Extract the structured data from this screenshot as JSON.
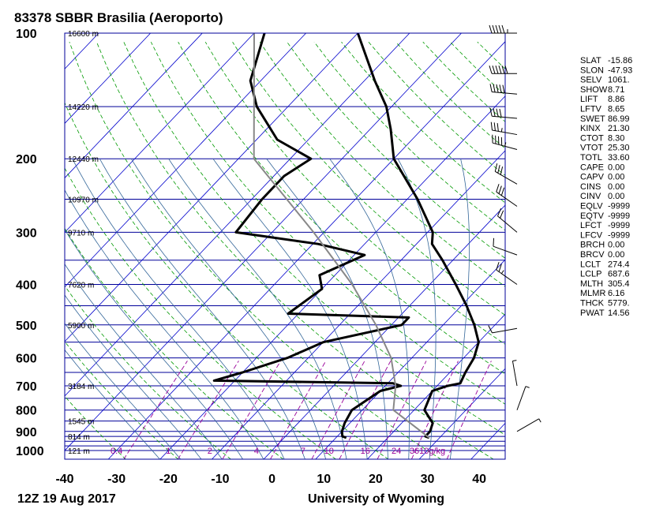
{
  "chart_data": {
    "type": "line",
    "title": "83378 SBBR Brasilia (Aeroporto)",
    "footer_left": "12Z 19 Aug 2017",
    "footer_right": "University of Wyoming",
    "x_ticks": [
      -40,
      -30,
      -20,
      -10,
      0,
      10,
      20,
      30,
      40
    ],
    "xlim": [
      -40,
      45
    ],
    "p_ticks": [
      100,
      200,
      300,
      400,
      500,
      600,
      700,
      800,
      900,
      1000
    ],
    "ylim": [
      1000,
      100
    ],
    "heights": [
      {
        "p": 100,
        "label": "16600 m"
      },
      {
        "p": 150,
        "label": "14220 m"
      },
      {
        "p": 200,
        "label": "12440 m"
      },
      {
        "p": 250,
        "label": "10970 m"
      },
      {
        "p": 300,
        "label": "9710 m"
      },
      {
        "p": 400,
        "label": "7620 m"
      },
      {
        "p": 500,
        "label": "5900 m"
      },
      {
        "p": 700,
        "label": "3184 m"
      },
      {
        "p": 850,
        "label": "1545 m"
      },
      {
        "p": 925,
        "label": "814 m"
      },
      {
        "p": 1000,
        "label": "121 m"
      }
    ],
    "mixing_ratio_labels": [
      {
        "w": 0.4,
        "t": -30,
        "label": "0.4"
      },
      {
        "w": 1,
        "t": -20,
        "label": "1"
      },
      {
        "w": 2,
        "t": -12,
        "label": "2"
      },
      {
        "w": 4,
        "t": -3,
        "label": "4"
      },
      {
        "w": 7,
        "t": 6,
        "label": "7"
      },
      {
        "w": 10,
        "t": 11,
        "label": "10"
      },
      {
        "w": 16,
        "t": 18,
        "label": "16"
      },
      {
        "w": 24,
        "t": 24,
        "label": "24"
      },
      {
        "w": 36,
        "t": 30,
        "label": "3610g/kg"
      }
    ],
    "series": [
      {
        "name": "temperature",
        "points": [
          {
            "p": 932,
            "t": 28
          },
          {
            "p": 925,
            "t": 27
          },
          {
            "p": 900,
            "t": 27
          },
          {
            "p": 860,
            "t": 26
          },
          {
            "p": 800,
            "t": 22
          },
          {
            "p": 720,
            "t": 20
          },
          {
            "p": 700,
            "t": 22
          },
          {
            "p": 690,
            "t": 24
          },
          {
            "p": 650,
            "t": 23
          },
          {
            "p": 600,
            "t": 22
          },
          {
            "p": 550,
            "t": 20
          },
          {
            "p": 500,
            "t": 16
          },
          {
            "p": 450,
            "t": 11
          },
          {
            "p": 400,
            "t": 5
          },
          {
            "p": 350,
            "t": -2
          },
          {
            "p": 320,
            "t": -7
          },
          {
            "p": 300,
            "t": -9
          },
          {
            "p": 250,
            "t": -18
          },
          {
            "p": 200,
            "t": -30
          },
          {
            "p": 170,
            "t": -36
          },
          {
            "p": 150,
            "t": -41
          },
          {
            "p": 130,
            "t": -48
          },
          {
            "p": 100,
            "t": -60
          }
        ]
      },
      {
        "name": "dewpoint",
        "points": [
          {
            "p": 932,
            "t": 12
          },
          {
            "p": 925,
            "t": 11
          },
          {
            "p": 900,
            "t": 10
          },
          {
            "p": 860,
            "t": 9
          },
          {
            "p": 800,
            "t": 8
          },
          {
            "p": 720,
            "t": 10
          },
          {
            "p": 700,
            "t": 13
          },
          {
            "p": 690,
            "t": 11
          },
          {
            "p": 680,
            "t": -24
          },
          {
            "p": 650,
            "t": -20
          },
          {
            "p": 600,
            "t": -14
          },
          {
            "p": 550,
            "t": -10
          },
          {
            "p": 500,
            "t": 2
          },
          {
            "p": 480,
            "t": 2
          },
          {
            "p": 470,
            "t": -22
          },
          {
            "p": 410,
            "t": -20
          },
          {
            "p": 380,
            "t": -23
          },
          {
            "p": 340,
            "t": -18
          },
          {
            "p": 320,
            "t": -29
          },
          {
            "p": 300,
            "t": -47
          },
          {
            "p": 250,
            "t": -48
          },
          {
            "p": 220,
            "t": -48
          },
          {
            "p": 200,
            "t": -46
          },
          {
            "p": 180,
            "t": -56
          },
          {
            "p": 150,
            "t": -66
          },
          {
            "p": 130,
            "t": -72
          },
          {
            "p": 100,
            "t": -78
          }
        ]
      },
      {
        "name": "parcel",
        "points": [
          {
            "p": 932,
            "t": 28
          },
          {
            "p": 800,
            "t": 16
          },
          {
            "p": 700,
            "t": 12
          },
          {
            "p": 600,
            "t": 6
          },
          {
            "p": 500,
            "t": -3
          },
          {
            "p": 400,
            "t": -15
          },
          {
            "p": 300,
            "t": -32
          },
          {
            "p": 200,
            "t": -57
          },
          {
            "p": 100,
            "t": -80
          }
        ]
      }
    ],
    "wind_barbs": [
      {
        "p": 100,
        "dir": 270,
        "spd": 55
      },
      {
        "p": 125,
        "dir": 270,
        "spd": 60
      },
      {
        "p": 140,
        "dir": 275,
        "spd": 50
      },
      {
        "p": 160,
        "dir": 275,
        "spd": 40
      },
      {
        "p": 175,
        "dir": 280,
        "spd": 35
      },
      {
        "p": 190,
        "dir": 285,
        "spd": 45
      },
      {
        "p": 230,
        "dir": 300,
        "spd": 30
      },
      {
        "p": 260,
        "dir": 305,
        "spd": 30
      },
      {
        "p": 300,
        "dir": 310,
        "spd": 20
      },
      {
        "p": 340,
        "dir": 290,
        "spd": 10
      },
      {
        "p": 400,
        "dir": 305,
        "spd": 25
      },
      {
        "p": 510,
        "dir": 260,
        "spd": 10
      },
      {
        "p": 700,
        "dir": 350,
        "spd": 5
      },
      {
        "p": 800,
        "dir": 20,
        "spd": 8
      },
      {
        "p": 900,
        "dir": 60,
        "spd": 5
      }
    ],
    "indices": [
      {
        "k": "SLAT",
        "v": "-15.86"
      },
      {
        "k": "SLON",
        "v": "-47.93"
      },
      {
        "k": "SELV",
        "v": "1061."
      },
      {
        "k": "SHOW",
        "v": "8.71"
      },
      {
        "k": "LIFT",
        "v": "8.86"
      },
      {
        "k": "LFTV",
        "v": "8.65"
      },
      {
        "k": "SWET",
        "v": "86.99"
      },
      {
        "k": "KINX",
        "v": "21.30"
      },
      {
        "k": "CTOT",
        "v": "8.30"
      },
      {
        "k": "VTOT",
        "v": "25.30"
      },
      {
        "k": "TOTL",
        "v": "33.60"
      },
      {
        "k": "CAPE",
        "v": "0.00"
      },
      {
        "k": "CAPV",
        "v": "0.00"
      },
      {
        "k": "CINS",
        "v": "0.00"
      },
      {
        "k": "CINV",
        "v": "0.00"
      },
      {
        "k": "EQLV",
        "v": "-9999"
      },
      {
        "k": "EQTV",
        "v": "-9999"
      },
      {
        "k": "LFCT",
        "v": "-9999"
      },
      {
        "k": "LFCV",
        "v": "-9999"
      },
      {
        "k": "BRCH",
        "v": "0.00"
      },
      {
        "k": "BRCV",
        "v": "0.00"
      },
      {
        "k": "LCLT",
        "v": "274.4"
      },
      {
        "k": "LCLP",
        "v": "687.6"
      },
      {
        "k": "MLTH",
        "v": "305.4"
      },
      {
        "k": "MLMR",
        "v": "6.16"
      },
      {
        "k": "THCK",
        "v": "5779."
      },
      {
        "k": "PWAT",
        "v": "14.56"
      }
    ],
    "colors": {
      "isobar": "#000099",
      "isotherm": "#0000cc",
      "dry_adiabat": "#009900",
      "moist_adiabat": "#336699",
      "mixing_ratio": "#990099",
      "trace": "#000000",
      "parcel": "#888888"
    }
  }
}
